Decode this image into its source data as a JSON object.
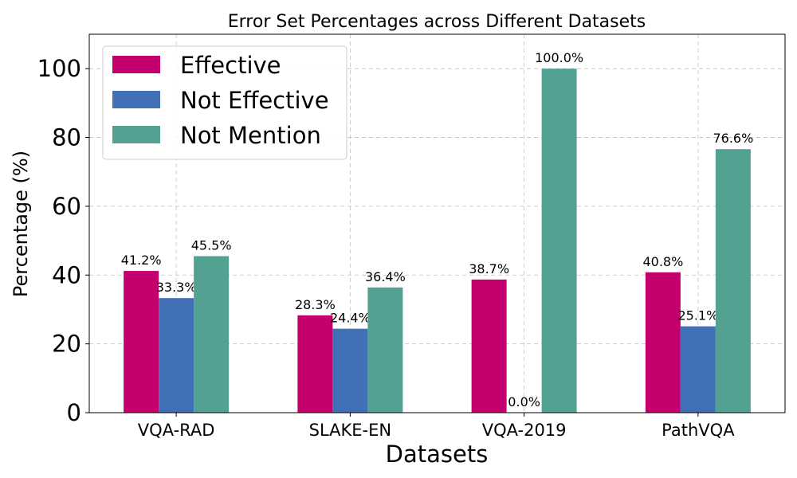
{
  "chart_data": {
    "type": "bar",
    "title": "Error Set Percentages across Different Datasets",
    "xlabel": "Datasets",
    "ylabel": "Percentage (%)",
    "ylim": [
      0,
      110
    ],
    "yticks": [
      0,
      20,
      40,
      60,
      80,
      100
    ],
    "grid": true,
    "legend_position": "top-left",
    "categories": [
      "VQA-RAD",
      "SLAKE-EN",
      "VQA-2019",
      "PathVQA"
    ],
    "series": [
      {
        "name": "Effective",
        "color": "#c4006f",
        "values": [
          41.2,
          28.3,
          38.7,
          40.8
        ],
        "labels": [
          "41.2%",
          "28.3%",
          "38.7%",
          "40.8%"
        ]
      },
      {
        "name": "Not Effective",
        "color": "#4270b6",
        "values": [
          33.3,
          24.4,
          0.0,
          25.1
        ],
        "labels": [
          "33.3%",
          "24.4%",
          "0.0%",
          "25.1%"
        ]
      },
      {
        "name": "Not Mention",
        "color": "#53a193",
        "values": [
          45.5,
          36.4,
          100.0,
          76.6
        ],
        "labels": [
          "45.5%",
          "36.4%",
          "100.0%",
          "76.6%"
        ]
      }
    ]
  }
}
